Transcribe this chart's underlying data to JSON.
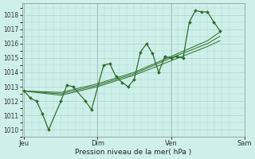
{
  "background_color": "#cff0ea",
  "grid_color": "#aad4cc",
  "line_color": "#2d6e2d",
  "marker_color": "#2d6e2d",
  "xlabel": "Pression niveau de la mer( hPa )",
  "ylim": [
    1009.5,
    1018.8
  ],
  "yticks": [
    1010,
    1011,
    1012,
    1013,
    1014,
    1015,
    1016,
    1017,
    1018
  ],
  "xtick_labels": [
    "Jeu",
    "Dim",
    "Ven",
    "Sam"
  ],
  "xtick_positions": [
    0.0,
    0.333,
    0.667,
    1.0
  ],
  "main_line": {
    "x": [
      0.0,
      0.028,
      0.056,
      0.083,
      0.111,
      0.167,
      0.194,
      0.222,
      0.278,
      0.306,
      0.361,
      0.389,
      0.417,
      0.444,
      0.472,
      0.5,
      0.528,
      0.556,
      0.583,
      0.611,
      0.639,
      0.667,
      0.694,
      0.722,
      0.75,
      0.778,
      0.806,
      0.833,
      0.861,
      0.889
    ],
    "y": [
      1012.7,
      1012.2,
      1012.0,
      1011.1,
      1010.0,
      1012.0,
      1013.1,
      1013.0,
      1012.0,
      1011.4,
      1014.5,
      1014.6,
      1013.7,
      1013.3,
      1013.0,
      1013.5,
      1015.4,
      1016.0,
      1015.3,
      1014.0,
      1015.1,
      1015.0,
      1015.1,
      1015.0,
      1017.5,
      1018.3,
      1018.2,
      1018.2,
      1017.5,
      1016.9
    ]
  },
  "trend_line1": {
    "x": [
      0.0,
      0.167,
      0.333,
      0.5,
      0.667,
      0.833,
      0.889
    ],
    "y": [
      1012.7,
      1012.4,
      1013.0,
      1013.8,
      1014.8,
      1015.8,
      1016.2
    ]
  },
  "trend_line2": {
    "x": [
      0.0,
      0.167,
      0.333,
      0.5,
      0.667,
      0.833,
      0.889
    ],
    "y": [
      1012.7,
      1012.5,
      1013.1,
      1013.9,
      1015.0,
      1016.0,
      1016.5
    ]
  },
  "trend_line3": {
    "x": [
      0.0,
      0.167,
      0.333,
      0.5,
      0.667,
      0.833,
      0.889
    ],
    "y": [
      1012.7,
      1012.6,
      1013.2,
      1014.0,
      1015.1,
      1016.2,
      1016.8
    ]
  }
}
